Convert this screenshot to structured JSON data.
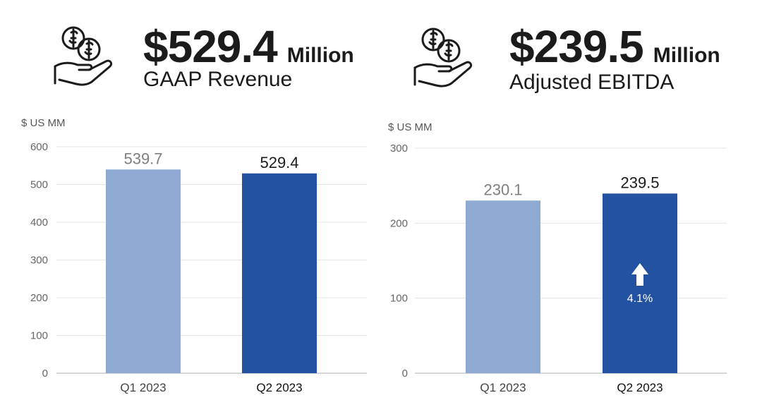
{
  "colors": {
    "q1_bar": "#8eaad3",
    "q2_bar": "#2352a2",
    "text_dark": "#1b1b1b",
    "grid": "#e6e6e6",
    "axis": "#bdbdbd"
  },
  "panels": [
    {
      "icon": "money-hand-icon",
      "headline_value": "$529.4",
      "headline_unit": "Million",
      "headline_label": "GAAP Revenue",
      "unit_label": "$ US MM"
    },
    {
      "icon": "money-hand-icon",
      "headline_value": "$239.5",
      "headline_unit": "Million",
      "headline_label": "Adjusted EBITDA",
      "unit_label": "$ US MM",
      "annotation": {
        "text": "4.1%",
        "icon": "up-arrow-icon"
      }
    }
  ],
  "chart_data": [
    {
      "type": "bar",
      "categories": [
        "Q1 2023",
        "Q2 2023"
      ],
      "values": [
        539.7,
        529.4
      ],
      "value_labels": [
        "539.7",
        "529.4"
      ],
      "ylabel": "$ US MM",
      "ylim": [
        0,
        600
      ],
      "yticks": [
        0,
        100,
        200,
        300,
        400,
        500,
        600
      ],
      "grid": true
    },
    {
      "type": "bar",
      "categories": [
        "Q1 2023",
        "Q2 2023"
      ],
      "values": [
        230.1,
        239.5
      ],
      "value_labels": [
        "230.1",
        "239.5"
      ],
      "ylabel": "$ US MM",
      "ylim": [
        0,
        300
      ],
      "yticks": [
        0,
        100,
        200,
        300
      ],
      "grid": true
    }
  ]
}
